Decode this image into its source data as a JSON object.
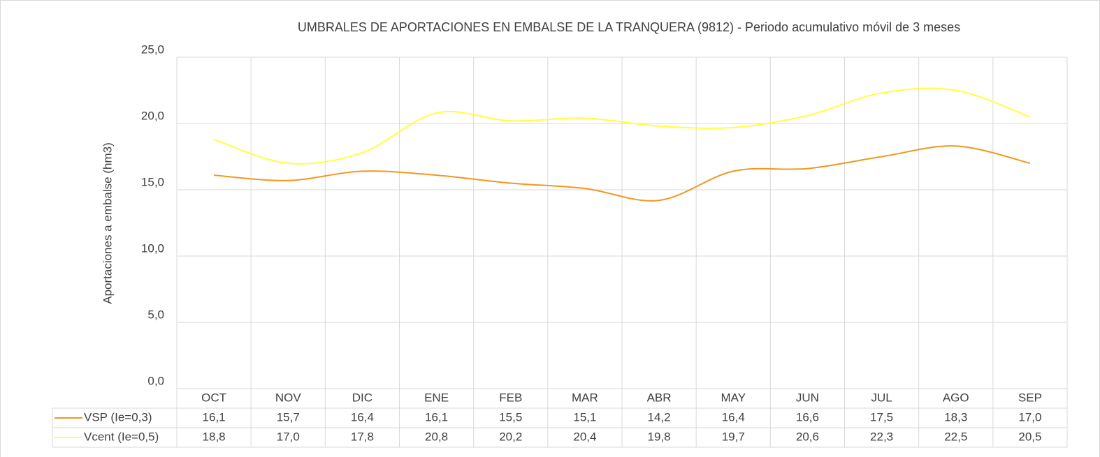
{
  "chart_data": {
    "type": "line",
    "title": "UMBRALES DE APORTACIONES EN EMBALSE DE LA TRANQUERA (9812) - Periodo acumulativo móvil de 3 meses",
    "y_label": "Aportaciones a embalse (hm3)",
    "categories": [
      "OCT",
      "NOV",
      "DIC",
      "ENE",
      "FEB",
      "MAR",
      "ABR",
      "MAY",
      "JUN",
      "JUL",
      "AGO",
      "SEP"
    ],
    "series": [
      {
        "name": "VSP (Ie=0,3)",
        "color": "#f5961e",
        "values": [
          16.1,
          15.7,
          16.4,
          16.1,
          15.5,
          15.1,
          14.2,
          16.4,
          16.6,
          17.5,
          18.3,
          17.0
        ],
        "value_labels": [
          "16,1",
          "15,7",
          "16,4",
          "16,1",
          "15,5",
          "15,1",
          "14,2",
          "16,4",
          "16,6",
          "17,5",
          "18,3",
          "17,0"
        ]
      },
      {
        "name": "Vcent (Ie=0,5)",
        "color": "#ffff3c",
        "values": [
          18.8,
          17.0,
          17.8,
          20.8,
          20.2,
          20.4,
          19.8,
          19.7,
          20.6,
          22.3,
          22.5,
          20.5
        ],
        "value_labels": [
          "18,8",
          "17,0",
          "17,8",
          "20,8",
          "20,2",
          "20,4",
          "19,8",
          "19,7",
          "20,6",
          "22,3",
          "22,5",
          "20,5"
        ]
      }
    ],
    "ylim": [
      0,
      25
    ],
    "yticks": [
      {
        "value": 0,
        "label": "0,0"
      },
      {
        "value": 5,
        "label": "5,0"
      },
      {
        "value": 10,
        "label": "10,0"
      },
      {
        "value": 15,
        "label": "15,0"
      },
      {
        "value": 20,
        "label": "20,0"
      },
      {
        "value": 25,
        "label": "25,0"
      }
    ],
    "grid": true,
    "smooth": true
  }
}
